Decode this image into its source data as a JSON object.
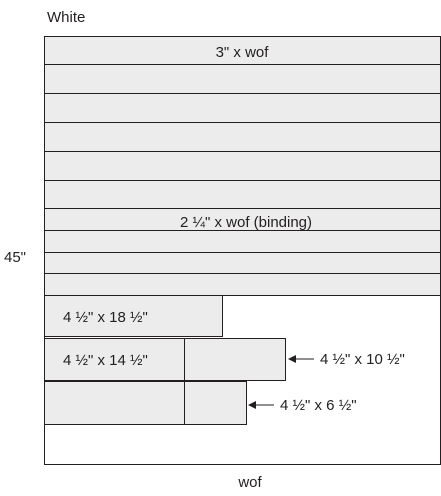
{
  "fabric_color_label": "White",
  "height_label": "45\"",
  "width_label": "wof",
  "colors": {
    "strip_fill": "#ececec",
    "line": "#231f20",
    "background": "#ffffff"
  },
  "strips": [
    {
      "label": "3\" x wof",
      "count": 1
    },
    {
      "label": "",
      "count": 5
    },
    {
      "label": "2 ¼\" x wof (binding)",
      "count": 1
    },
    {
      "label": "",
      "count": 2
    }
  ],
  "pieces": {
    "piece_18": {
      "label": "4 ½\" x 18 ½\""
    },
    "piece_14": {
      "label": "4 ½\" x 14 ½\""
    },
    "piece_10": {
      "label": "4 ½\" x 10 ½\""
    },
    "piece_6": {
      "label": "4 ½\" x 6 ½\""
    }
  }
}
